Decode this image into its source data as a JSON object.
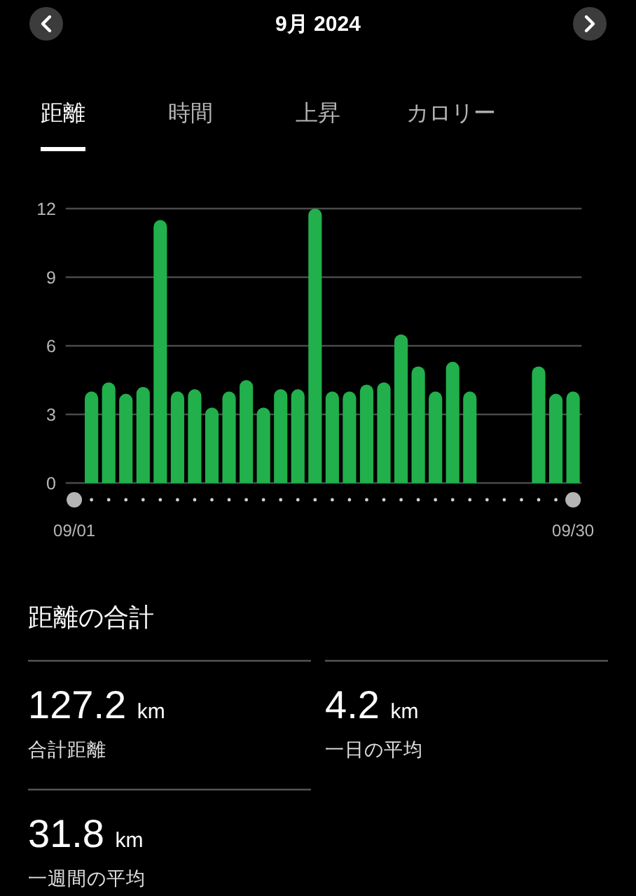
{
  "chart_data": [
    {
      "type": "bar",
      "title": "9月 2024",
      "annotations": [
        "距離",
        "時間",
        "上昇",
        "カロリー"
      ],
      "categories": [
        "09/01",
        null,
        null,
        null,
        null,
        null,
        null,
        null,
        null,
        null,
        null,
        null,
        null,
        null,
        null,
        null,
        null,
        null,
        null,
        null,
        null,
        null,
        null,
        null,
        null,
        null,
        null,
        null,
        null,
        "09/30"
      ],
      "values": [
        null,
        4.0,
        4.4,
        3.9,
        4.2,
        11.5,
        4.0,
        4.1,
        3.3,
        4.0,
        4.5,
        3.3,
        4.1,
        4.1,
        12.0,
        4.0,
        4.0,
        4.3,
        4.4,
        6.5,
        5.1,
        4.0,
        5.3,
        4.0,
        null,
        null,
        null,
        5.1,
        3.9,
        4.0
      ],
      "color": "#21b04b",
      "ylim": [
        0,
        12
      ],
      "yticks": [
        0,
        3,
        6,
        9,
        12
      ],
      "grid": "y"
    },
    {
      "type": "other",
      "title": "距離の合計",
      "annotations": [
        "127.2 km",
        "合計距離",
        "4.2 km",
        "一日の平均",
        "31.8 km",
        "一週間の平均"
      ]
    }
  ]
}
